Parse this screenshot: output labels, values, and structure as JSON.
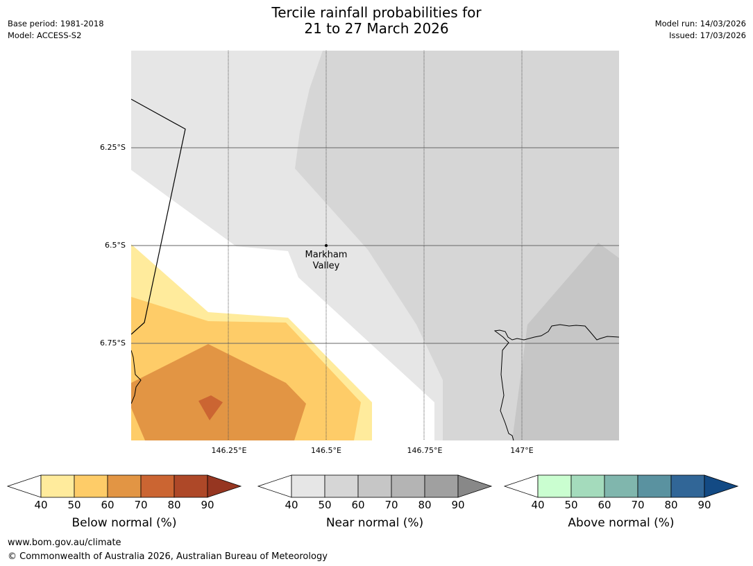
{
  "header": {
    "title_line1": "Tercile rainfall probabilities for",
    "title_line2": "21 to 27 March 2026",
    "base_period": "Base period: 1981-2018",
    "model": "Model: ACCESS-S2",
    "model_run": "Model run: 14/03/2026",
    "issued": "Issued: 17/03/2026"
  },
  "map": {
    "lat_labels": [
      "6.25°S",
      "6.5°S",
      "6.75°S"
    ],
    "lon_labels": [
      "146.25°E",
      "146.5°E",
      "146.75°E",
      "147°E"
    ],
    "place": {
      "name_line1": "Markham",
      "name_line2": "Valley"
    }
  },
  "colorbars": [
    {
      "title": "Below normal (%)",
      "ticks": [
        "40",
        "50",
        "60",
        "70",
        "80",
        "90"
      ],
      "colors": [
        "#ffeb9c",
        "#fecc68",
        "#e29544",
        "#cb6532",
        "#ae4828"
      ],
      "extend_color": "#963621"
    },
    {
      "title": "Near normal (%)",
      "ticks": [
        "40",
        "50",
        "60",
        "70",
        "80",
        "90"
      ],
      "colors": [
        "#e6e6e6",
        "#d6d6d6",
        "#c6c6c6",
        "#b4b4b4",
        "#a0a0a0"
      ],
      "extend_color": "#888888"
    },
    {
      "title": "Above normal (%)",
      "ticks": [
        "40",
        "50",
        "60",
        "70",
        "80",
        "90"
      ],
      "colors": [
        "#cafed0",
        "#a4dbbc",
        "#80b6ad",
        "#5a92a0",
        "#316697"
      ],
      "extend_color": "#134a84"
    }
  ],
  "footer": {
    "url": "www.bom.gov.au/climate",
    "copyright": "© Commonwealth of Australia 2026, Australian Bureau of Meteorology"
  }
}
